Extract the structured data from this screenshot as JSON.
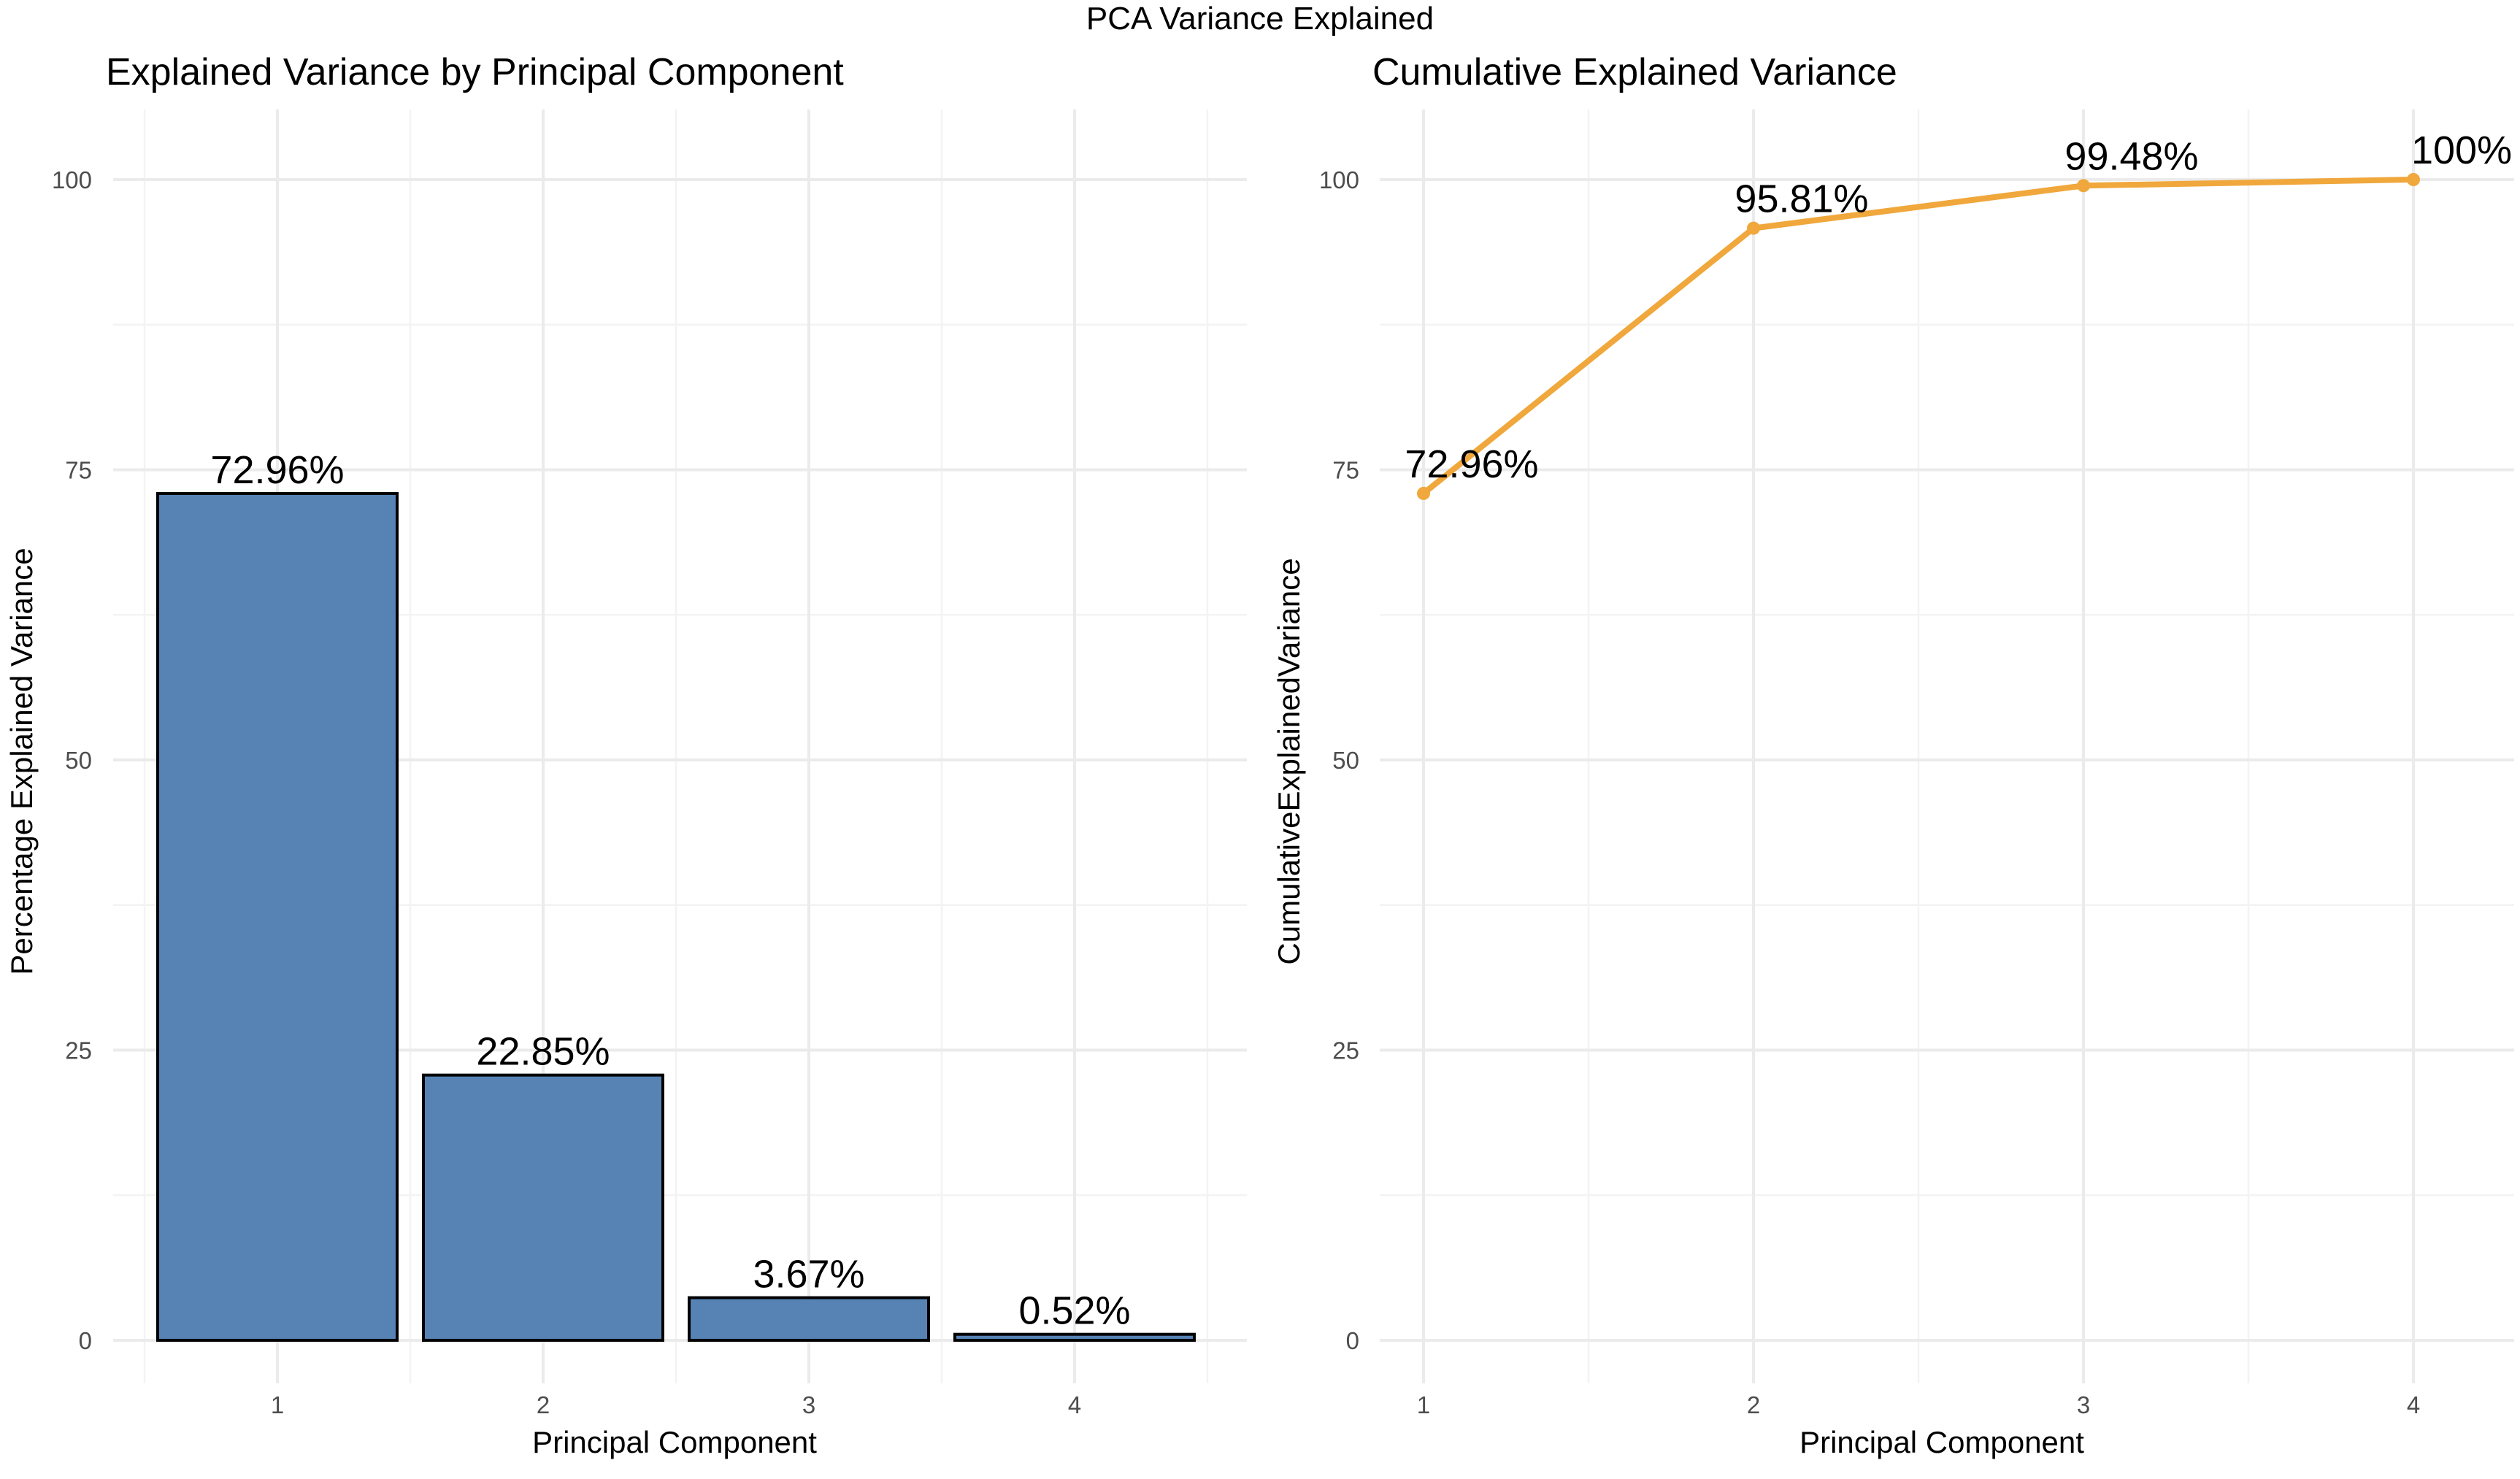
{
  "figure": {
    "title": "PCA Variance Explained"
  },
  "chart_data": [
    {
      "type": "bar",
      "title": "Explained Variance by Principal Component",
      "xlabel": "Principal Component",
      "ylabel": "Percentage Explained Variance",
      "categories": [
        "1",
        "2",
        "3",
        "4"
      ],
      "values": [
        72.96,
        22.85,
        3.67,
        0.52
      ],
      "data_labels": [
        "72.96%",
        "22.85%",
        "3.67%",
        "0.52%"
      ],
      "ylim": [
        0,
        100
      ],
      "yticks": [
        0,
        25,
        50,
        75,
        100
      ],
      "xticks": [
        "1",
        "2",
        "3",
        "4"
      ],
      "grid": true,
      "legend": "none",
      "colors": {
        "fill": "#5682b4",
        "outline": "#000000"
      }
    },
    {
      "type": "line",
      "title": "Cumulative Explained Variance",
      "xlabel": "Principal Component",
      "ylabel": "CumulativeExplainedVariance",
      "x": [
        1,
        2,
        3,
        4
      ],
      "values": [
        72.96,
        95.81,
        99.48,
        100
      ],
      "data_labels": [
        "72.96%",
        "95.81%",
        "99.48%",
        "100%"
      ],
      "ylim": [
        0,
        100
      ],
      "yticks": [
        0,
        25,
        50,
        75,
        100
      ],
      "xticks": [
        "1",
        "2",
        "3",
        "4"
      ],
      "grid": true,
      "markers": true,
      "legend": "none",
      "colors": {
        "line": "#f0a73c"
      }
    }
  ]
}
